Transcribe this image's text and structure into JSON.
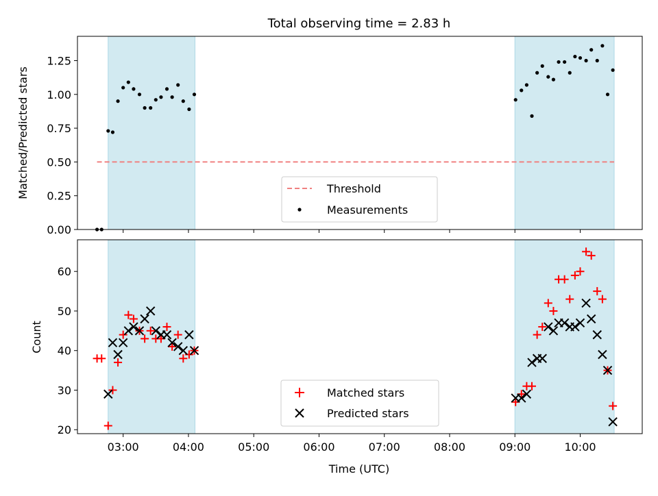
{
  "chart_data": [
    {
      "type": "scatter",
      "title": "Total observing time = 2.83 h",
      "ylabel": "Matched/Predicted stars",
      "xlabel": "",
      "xlim": [
        2.3,
        10.95
      ],
      "ylim": [
        0.0,
        1.43
      ],
      "yticks": [
        0.0,
        0.25,
        0.5,
        0.75,
        1.0,
        1.25
      ],
      "ytick_labels": [
        "0.00",
        "0.25",
        "0.50",
        "0.75",
        "1.00",
        "1.25"
      ],
      "xticks": [
        3,
        4,
        5,
        6,
        7,
        8,
        9,
        10
      ],
      "shaded_intervals": [
        [
          2.77,
          4.1
        ],
        [
          9.0,
          10.52
        ]
      ],
      "shade_color": "#add8e6",
      "threshold": {
        "name": "Threshold",
        "y": 0.5,
        "x_range": [
          2.6,
          10.52
        ],
        "color": "#f08080"
      },
      "legend": {
        "placement": "bottom-center",
        "entries": [
          "Threshold",
          "Measurements"
        ]
      },
      "series": [
        {
          "name": "Measurements",
          "marker": "dot",
          "color": "#000000",
          "x": [
            2.6,
            2.67,
            2.77,
            2.84,
            2.92,
            3.0,
            3.08,
            3.16,
            3.25,
            3.33,
            3.42,
            3.5,
            3.58,
            3.67,
            3.75,
            3.84,
            3.92,
            4.01,
            4.09,
            9.01,
            9.1,
            9.18,
            9.26,
            9.34,
            9.42,
            9.51,
            9.59,
            9.67,
            9.76,
            9.84,
            9.92,
            10.0,
            10.09,
            10.17,
            10.26,
            10.34,
            10.42,
            10.5
          ],
          "y": [
            0.0,
            0.0,
            0.73,
            0.72,
            0.95,
            1.05,
            1.09,
            1.04,
            1.0,
            0.9,
            0.9,
            0.96,
            0.98,
            1.04,
            0.98,
            1.07,
            0.95,
            0.89,
            1.0,
            0.96,
            1.03,
            1.07,
            0.84,
            1.16,
            1.21,
            1.13,
            1.11,
            1.24,
            1.24,
            1.16,
            1.28,
            1.27,
            1.25,
            1.33,
            1.25,
            1.36,
            1.0,
            1.18
          ]
        }
      ]
    },
    {
      "type": "scatter",
      "title": "",
      "ylabel": "Count",
      "xlabel": "Time (UTC)",
      "xlim": [
        2.3,
        10.95
      ],
      "ylim": [
        19,
        68
      ],
      "yticks": [
        20,
        30,
        40,
        50,
        60
      ],
      "ytick_labels": [
        "20",
        "30",
        "40",
        "50",
        "60"
      ],
      "xticks": [
        3,
        4,
        5,
        6,
        7,
        8,
        9,
        10
      ],
      "xtick_labels": [
        "03:00",
        "04:00",
        "05:00",
        "06:00",
        "07:00",
        "08:00",
        "09:00",
        "10:00"
      ],
      "shaded_intervals": [
        [
          2.77,
          4.1
        ],
        [
          9.0,
          10.52
        ]
      ],
      "shade_color": "#add8e6",
      "legend": {
        "placement": "bottom-center",
        "entries": [
          "Matched stars",
          "Predicted stars"
        ]
      },
      "series": [
        {
          "name": "Matched stars",
          "marker": "plus",
          "color": "#ff0000",
          "x": [
            2.6,
            2.67,
            2.77,
            2.84,
            2.92,
            3.0,
            3.08,
            3.16,
            3.25,
            3.33,
            3.42,
            3.5,
            3.58,
            3.67,
            3.75,
            3.84,
            3.92,
            4.01,
            4.09,
            9.01,
            9.1,
            9.18,
            9.26,
            9.34,
            9.42,
            9.51,
            9.59,
            9.67,
            9.76,
            9.84,
            9.92,
            10.0,
            10.09,
            10.17,
            10.26,
            10.34,
            10.42,
            10.5
          ],
          "y": [
            38,
            38,
            21,
            30,
            37,
            44,
            49,
            48,
            45,
            43,
            45,
            43,
            43,
            46,
            41,
            44,
            38,
            39,
            40,
            27,
            29,
            31,
            31,
            44,
            46,
            52,
            50,
            58,
            58,
            53,
            59,
            60,
            65,
            64,
            55,
            53,
            35,
            26
          ]
        },
        {
          "name": "Predicted stars",
          "marker": "x",
          "color": "#000000",
          "x": [
            2.77,
            2.84,
            2.92,
            3.0,
            3.08,
            3.16,
            3.25,
            3.33,
            3.42,
            3.5,
            3.58,
            3.67,
            3.75,
            3.84,
            3.92,
            4.01,
            4.09,
            9.01,
            9.1,
            9.18,
            9.26,
            9.34,
            9.42,
            9.51,
            9.59,
            9.67,
            9.76,
            9.84,
            9.92,
            10.0,
            10.09,
            10.17,
            10.26,
            10.34,
            10.42,
            10.5
          ],
          "y": [
            29,
            42,
            39,
            42,
            45,
            46,
            45,
            48,
            50,
            45,
            44,
            44,
            42,
            41,
            40,
            44,
            40,
            28,
            28,
            29,
            37,
            38,
            38,
            46,
            45,
            47,
            47,
            46,
            46,
            47,
            52,
            48,
            44,
            39,
            35,
            22
          ]
        }
      ]
    }
  ]
}
